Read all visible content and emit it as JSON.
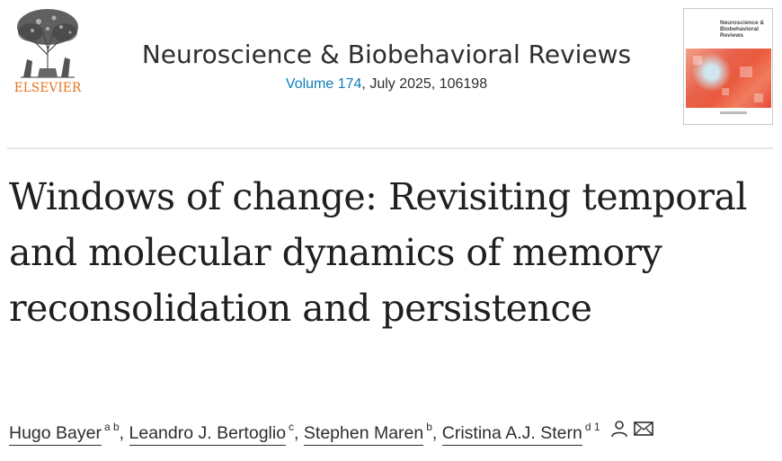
{
  "publisher": {
    "name": "ELSEVIER"
  },
  "journal": {
    "title": "Neuroscience & Biobehavioral Reviews",
    "volume_link": "Volume 174",
    "issue_info": ", July 2025, 106198"
  },
  "cover": {
    "title": "Neuroscience & Biobehavioral Reviews"
  },
  "article": {
    "title": "Windows of change: Revisiting temporal and molecular dynamics of memory reconsolidation and persistence"
  },
  "authors": [
    {
      "name": "Hugo Bayer",
      "affiliations": "a b",
      "separator": ", "
    },
    {
      "name": "Leandro J. Bertoglio",
      "affiliations": "c",
      "separator": ", "
    },
    {
      "name": "Stephen Maren",
      "affiliations": "b",
      "separator": ", "
    },
    {
      "name": "Cristina A.J. Stern",
      "affiliations": "d 1",
      "separator": ""
    }
  ],
  "icons": {
    "person": "person-icon",
    "email": "email-icon"
  },
  "colors": {
    "publisher_orange": "#e9711c",
    "link_blue": "#0c7dbb",
    "text": "#1f1f1f"
  }
}
